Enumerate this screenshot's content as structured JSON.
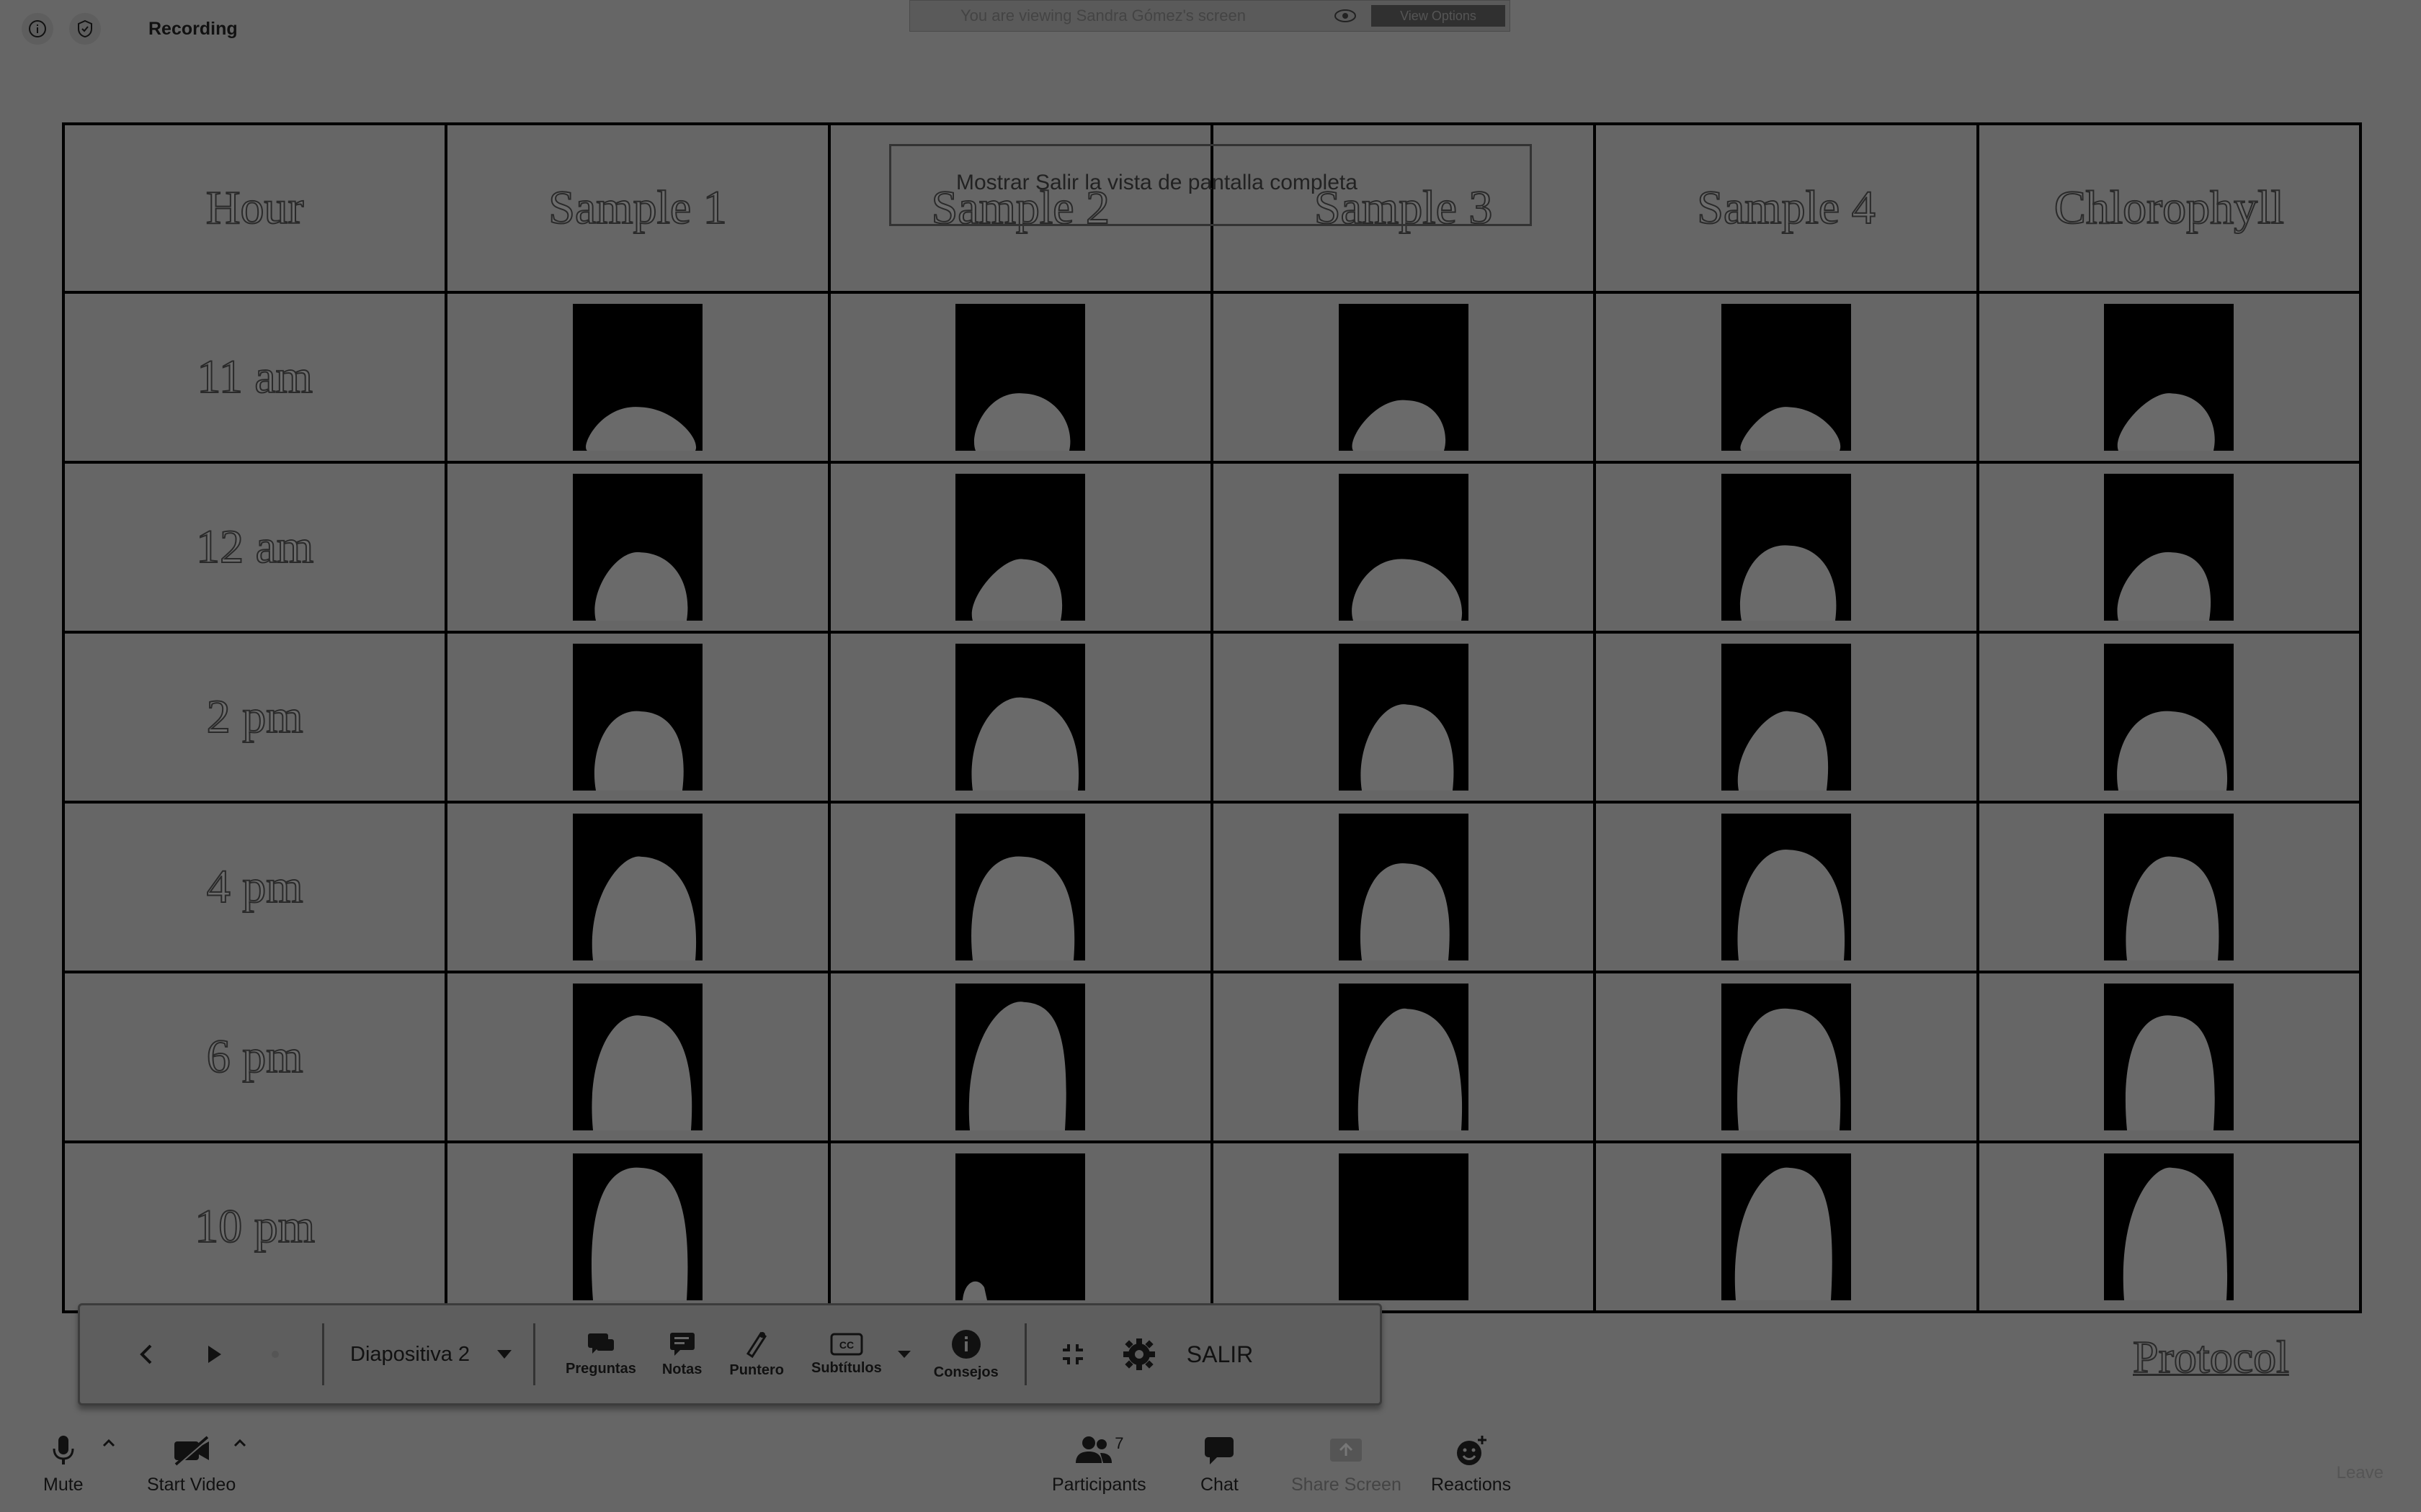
{
  "topbar": {
    "recording_label": "Recording",
    "info_icon": "info-icon",
    "shield_icon": "shield-icon"
  },
  "share_banner": {
    "text": "You are viewing Sandra Gómez's screen",
    "view_options": "View Options"
  },
  "slide": {
    "headers": [
      "Hour",
      "Sample 1",
      "Sample 2",
      "Sample 3",
      "Sample 4",
      "Chlorophyll"
    ],
    "rows": [
      {
        "hour": "11 am"
      },
      {
        "hour": "12 am"
      },
      {
        "hour": "2 pm"
      },
      {
        "hour": "4 pm"
      },
      {
        "hour": "6 pm"
      },
      {
        "hour": "10 pm"
      }
    ],
    "overlay_text": "Mostrar Salir la vista de pantalla completa",
    "protocol": "Protocol"
  },
  "presenter_bar": {
    "slide_name": "Diapositiva 2",
    "buttons": {
      "preguntas": "Preguntas",
      "notas": "Notas",
      "puntero": "Puntero",
      "subtitulos": "Subtítulos",
      "consejos": "Consejos",
      "salir": "SALIR"
    }
  },
  "bottom_bar": {
    "mute": "Mute",
    "start_video": "Start Video",
    "participants": "Participants",
    "participants_count": "7",
    "chat": "Chat",
    "share_screen": "Share Screen",
    "reactions": "Reactions",
    "leave": "Leave"
  }
}
